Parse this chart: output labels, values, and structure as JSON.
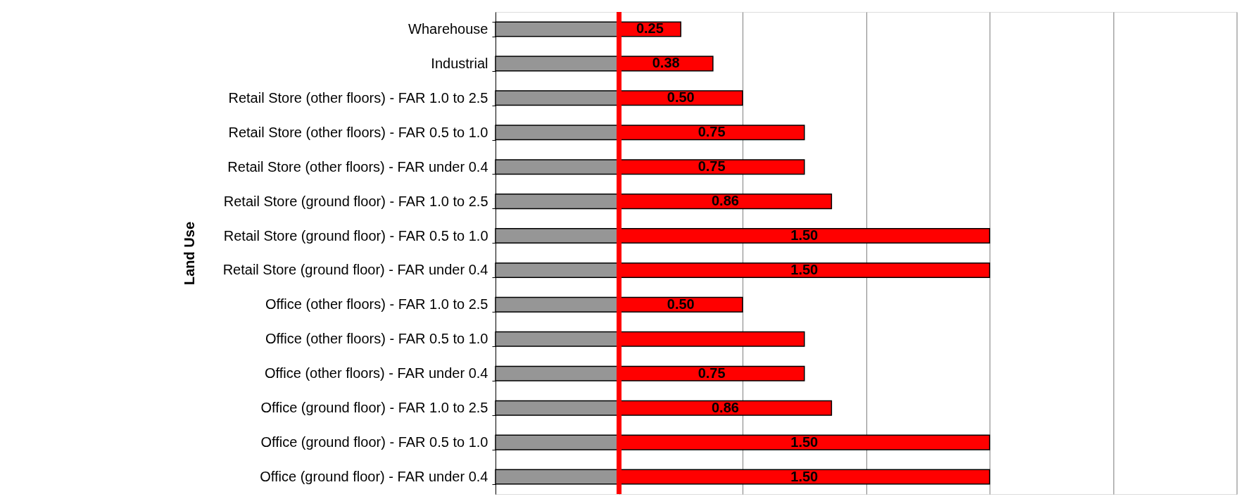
{
  "chart_data": {
    "type": "bar",
    "orientation": "horizontal",
    "stacked": true,
    "ylabel": "Land Use",
    "categories": [
      "Wharehouse",
      "Industrial",
      "Retail Store (other floors) - FAR 1.0 to 2.5",
      "Retail Store (other floors) - FAR 0.5 to 1.0",
      "Retail Store (other floors) - FAR under 0.4",
      "Retail Store (ground floor) - FAR 1.0 to 2.5",
      "Retail Store (ground floor) - FAR 0.5 to 1.0",
      "Retail Store (ground floor) - FAR under 0.4",
      "Office (other floors) - FAR 1.0 to 2.5",
      "Office (other floors) - FAR 0.5 to 1.0",
      "Office (other floors) - FAR under 0.4",
      "Office (ground floor) - FAR 1.0 to 2.5",
      "Office (ground floor) - FAR 0.5 to 1.0",
      "Office (ground floor) - FAR under 0.4"
    ],
    "series": [
      {
        "color": "#969696",
        "values": [
          0.5,
          0.5,
          0.5,
          0.5,
          0.5,
          0.5,
          0.5,
          0.5,
          0.5,
          0.5,
          0.5,
          0.5,
          0.5,
          0.5
        ]
      },
      {
        "color": "#ff0000",
        "values": [
          0.25,
          0.38,
          0.5,
          0.75,
          0.75,
          0.86,
          1.5,
          1.5,
          0.5,
          0.75,
          0.75,
          0.86,
          1.5,
          1.5
        ],
        "value_labels": [
          "0.25",
          "0.38",
          "0.50",
          "0.75",
          "0.75",
          "0.86",
          "1.50",
          "1.50",
          "0.50",
          null,
          "0.75",
          "0.86",
          "1.50",
          "1.50"
        ]
      }
    ],
    "xlim": [
      0,
      3
    ],
    "ref_lines": [
      {
        "axis": "x",
        "value": 0.5,
        "color": "#ff0000"
      }
    ],
    "grid": "x"
  }
}
